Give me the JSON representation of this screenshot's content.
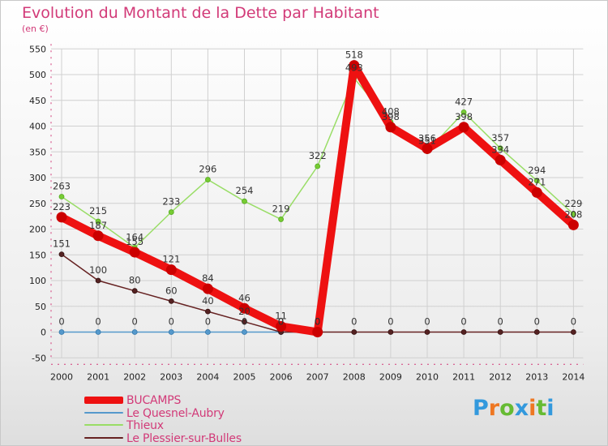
{
  "title": "Evolution du Montant de la Dette par Habitant",
  "unit": "(en €)",
  "logo": "Proxiti",
  "colors": {
    "title": "#d23a78",
    "axis_text": "#222222",
    "grid": "#d0d0d0",
    "axis": "#d23a78"
  },
  "chart_data": {
    "type": "line",
    "title": "Evolution du Montant de la Dette par Habitant",
    "ylabel": "(en €)",
    "xlabel": "",
    "ylim": [
      -50,
      550
    ],
    "yticks": [
      -50,
      0,
      50,
      100,
      150,
      200,
      250,
      300,
      350,
      400,
      450,
      500,
      550
    ],
    "categories": [
      "2000",
      "2001",
      "2002",
      "2003",
      "2004",
      "2005",
      "2006",
      "2007",
      "2008",
      "2009",
      "2010",
      "2011",
      "2012",
      "2013",
      "2014"
    ],
    "series": [
      {
        "name": "BUCAMPS",
        "color": "#ee1111",
        "values": [
          223,
          187,
          155,
          121,
          84,
          46,
          11,
          0,
          518,
          398,
          356,
          398,
          334,
          271,
          208
        ],
        "labels": [
          "223",
          "187",
          "155",
          "121",
          "84",
          "46",
          "11",
          "0",
          "518",
          "398",
          "356",
          "398",
          "334",
          "271",
          "208"
        ]
      },
      {
        "name": "Le Quesnel-Aubry",
        "color": "#5599cc",
        "values": [
          0,
          0,
          0,
          0,
          0,
          0,
          0,
          0,
          null,
          null,
          null,
          null,
          null,
          null,
          null
        ],
        "labels": [
          "0",
          "0",
          "0",
          "0",
          "0",
          "0",
          "0",
          "0",
          "",
          "",
          "",
          "",
          "",
          "",
          ""
        ]
      },
      {
        "name": "Thieux",
        "color": "#99dd66",
        "values": [
          263,
          215,
          164,
          233,
          296,
          254,
          219,
          322,
          493,
          408,
          351,
          427,
          357,
          294,
          229
        ],
        "labels": [
          "263",
          "215",
          "164",
          "233",
          "296",
          "254",
          "219",
          "322",
          "493",
          "408",
          "351",
          "427",
          "357",
          "294",
          "229"
        ]
      },
      {
        "name": "Le Plessier-sur-Bulles",
        "color": "#662222",
        "values": [
          151,
          100,
          80,
          60,
          40,
          20,
          0,
          0,
          0,
          0,
          0,
          0,
          0,
          0,
          0
        ],
        "labels": [
          "151",
          "100",
          "80",
          "60",
          "40",
          "20",
          "0",
          "0",
          "0",
          "0",
          "0",
          "0",
          "0",
          "0",
          "0"
        ]
      }
    ]
  }
}
